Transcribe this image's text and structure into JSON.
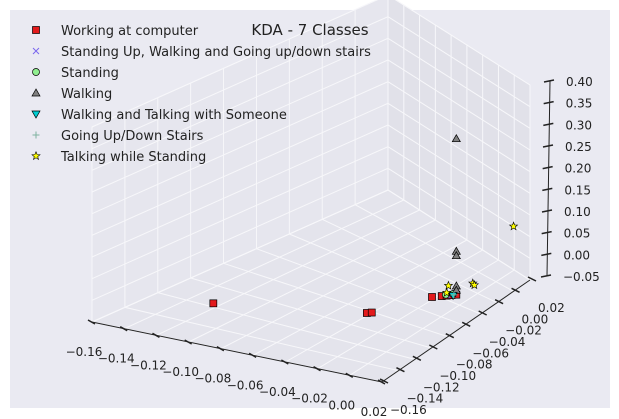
{
  "chart_data": {
    "type": "scatter",
    "projection": "3d",
    "title": "KDA - 7 Classes",
    "legend_position": "top-left",
    "grid": true,
    "x_axis": {
      "ticks": [
        "−0.16",
        "−0.14",
        "−0.12",
        "−0.10",
        "−0.08",
        "−0.06",
        "−0.04",
        "−0.02",
        "0.00",
        "0.02"
      ],
      "range": [
        -0.16,
        0.02
      ]
    },
    "y_axis": {
      "ticks": [
        "−0.16",
        "−0.14",
        "−0.12",
        "−0.10",
        "−0.08",
        "−0.06",
        "−0.04",
        "−0.02",
        "0.00",
        "0.02"
      ],
      "range": [
        -0.16,
        0.02
      ]
    },
    "z_axis": {
      "ticks": [
        "−0.05",
        "0.00",
        "0.05",
        "0.10",
        "0.15",
        "0.20",
        "0.25",
        "0.30",
        "0.35",
        "0.40"
      ],
      "range": [
        -0.05,
        0.4
      ]
    },
    "series": [
      {
        "name": "Working at computer",
        "marker": "square",
        "color": "#e31a1c",
        "points": [
          {
            "x": -0.1,
            "y": -0.13,
            "z": 0.0
          },
          {
            "x": -0.02,
            "y": -0.1,
            "z": 0.0
          },
          {
            "x": -0.018,
            "y": -0.098,
            "z": 0.0
          },
          {
            "x": 0.0,
            "y": -0.06,
            "z": 0.0
          },
          {
            "x": 0.004,
            "y": -0.056,
            "z": 0.0
          },
          {
            "x": 0.006,
            "y": -0.054,
            "z": 0.0
          },
          {
            "x": 0.008,
            "y": -0.052,
            "z": 0.0
          },
          {
            "x": 0.01,
            "y": -0.05,
            "z": 0.0
          }
        ]
      },
      {
        "name": "Standing Up, Walking and Going up/down stairs",
        "marker": "x",
        "color": "#7b68ee",
        "points": [
          {
            "x": 0.008,
            "y": -0.052,
            "z": 0.0
          },
          {
            "x": 0.006,
            "y": -0.05,
            "z": 0.0
          }
        ]
      },
      {
        "name": "Standing",
        "marker": "circle",
        "color": "#90ee90",
        "points": [
          {
            "x": 0.008,
            "y": -0.05,
            "z": 0.0
          },
          {
            "x": 0.005,
            "y": -0.053,
            "z": 0.0
          }
        ]
      },
      {
        "name": "Walking",
        "marker": "triangle-up",
        "color": "#808080",
        "points": [
          {
            "x": 0.01,
            "y": -0.05,
            "z": 0.36
          },
          {
            "x": 0.01,
            "y": -0.05,
            "z": 0.1
          },
          {
            "x": 0.01,
            "y": -0.05,
            "z": 0.09
          },
          {
            "x": 0.01,
            "y": -0.05,
            "z": 0.02
          },
          {
            "x": 0.01,
            "y": -0.05,
            "z": 0.01
          }
        ]
      },
      {
        "name": "Walking and Talking with Someone",
        "marker": "triangle-down",
        "color": "#00ced1",
        "points": [
          {
            "x": 0.009,
            "y": -0.052,
            "z": 0.0
          }
        ]
      },
      {
        "name": "Going Up/Down Stairs",
        "marker": "plus",
        "color": "#7fb3a0",
        "points": [
          {
            "x": 0.009,
            "y": -0.051,
            "z": 0.0
          }
        ]
      },
      {
        "name": "Talking while Standing",
        "marker": "star",
        "color": "#ffff00",
        "points": [
          {
            "x": 0.02,
            "y": 0.0,
            "z": 0.1
          },
          {
            "x": 0.01,
            "y": -0.03,
            "z": 0.0
          },
          {
            "x": 0.012,
            "y": -0.032,
            "z": 0.0
          },
          {
            "x": 0.0,
            "y": -0.04,
            "z": 0.0
          },
          {
            "x": 0.004,
            "y": -0.05,
            "z": 0.0
          }
        ]
      }
    ]
  }
}
